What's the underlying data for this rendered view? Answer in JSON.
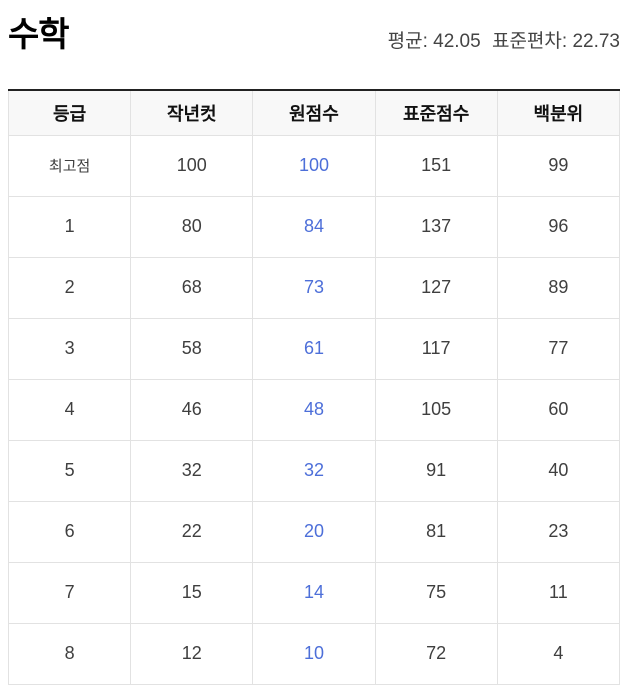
{
  "header": {
    "title": "수학",
    "mean": "평균: 42.05",
    "stddev": "표준편차: 22.73"
  },
  "table": {
    "columns": [
      "등급",
      "작년컷",
      "원점수",
      "표준점수",
      "백분위"
    ],
    "column_keys": [
      "grade",
      "last-year-cut",
      "raw-score",
      "standard-score",
      "percentile"
    ],
    "highlight_column_index": 2,
    "rows": [
      [
        "최고점",
        "100",
        "100",
        "151",
        "99"
      ],
      [
        "1",
        "80",
        "84",
        "137",
        "96"
      ],
      [
        "2",
        "68",
        "73",
        "127",
        "89"
      ],
      [
        "3",
        "58",
        "61",
        "117",
        "77"
      ],
      [
        "4",
        "46",
        "48",
        "105",
        "60"
      ],
      [
        "5",
        "32",
        "32",
        "91",
        "40"
      ],
      [
        "6",
        "22",
        "20",
        "81",
        "23"
      ],
      [
        "7",
        "15",
        "14",
        "75",
        "11"
      ],
      [
        "8",
        "12",
        "10",
        "72",
        "4"
      ]
    ],
    "colors": {
      "raw_score_text": "#4d6fd9",
      "body_text": "#3f3f3f",
      "header_text": "#111111",
      "top_border": "#222222",
      "cell_border": "#e2e2e2",
      "header_bg": "#f8f8f8"
    }
  }
}
